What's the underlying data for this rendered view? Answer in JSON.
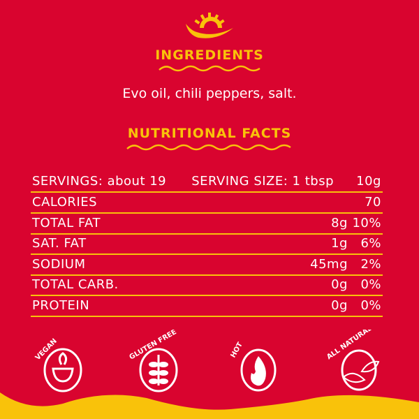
{
  "colors": {
    "background": "#D9042F",
    "accent": "#F9C20A",
    "text": "#FFFFFF"
  },
  "logo_icon": "chili-sun-icon",
  "ingredients": {
    "title": "INGREDIENTS",
    "text": "Evo oil, chili peppers, salt."
  },
  "nutrition": {
    "title": "NUTRITIONAL FACTS",
    "servings": "SERVINGS: about 19",
    "serving_size": "SERVING SIZE: 1 tbsp",
    "serving_size_value": "10g",
    "rows": [
      {
        "label": "CALORIES",
        "amount": "",
        "percent": "70"
      },
      {
        "label": "TOTAL FAT",
        "amount": "8g",
        "percent": "10%"
      },
      {
        "label": "SAT. FAT",
        "amount": "1g",
        "percent": "6%"
      },
      {
        "label": "SODIUM",
        "amount": "45mg",
        "percent": "2%"
      },
      {
        "label": "TOTAL CARB.",
        "amount": "0g",
        "percent": "0%"
      },
      {
        "label": "PROTEIN",
        "amount": "0g",
        "percent": "0%"
      }
    ]
  },
  "badges": [
    {
      "label": "VEGAN",
      "icon": "bowl-icon"
    },
    {
      "label": "GLUTEN FREE",
      "icon": "wheat-icon"
    },
    {
      "label": "HOT",
      "icon": "flame-icon"
    },
    {
      "label": "ALL NATURAL",
      "icon": "leaf-icon"
    }
  ]
}
